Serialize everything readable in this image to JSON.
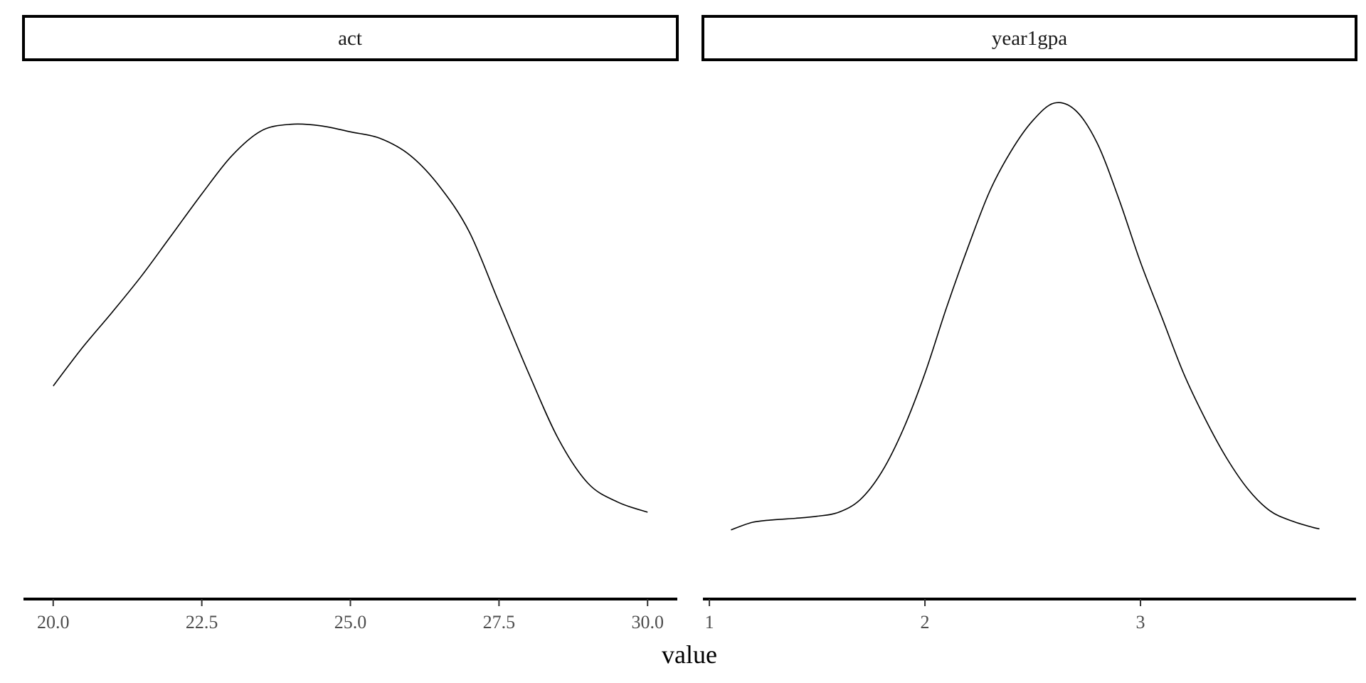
{
  "chart_data": {
    "type": "line",
    "chart_kind": "faceted density plot",
    "xlabel": "value",
    "ylabel": "",
    "y_axis_shown": false,
    "grid": false,
    "legend": "none",
    "line_color": "#000000",
    "panels": [
      {
        "strip_label": "act",
        "xlim": [
          19.5,
          30.5
        ],
        "x_ticks": [
          20.0,
          22.5,
          25.0,
          27.5,
          30.0
        ],
        "x_tick_labels": [
          "20.0",
          "22.5",
          "25.0",
          "27.5",
          "30.0"
        ],
        "series": [
          {
            "x": [
              20.0,
              20.5,
              21.0,
              21.5,
              22.0,
              22.5,
              23.0,
              23.5,
              24.0,
              24.5,
              25.0,
              25.5,
              26.0,
              26.5,
              27.0,
              27.5,
              28.0,
              28.5,
              29.0,
              29.5,
              30.0
            ],
            "y": [
              0.405,
              0.482,
              0.552,
              0.625,
              0.705,
              0.785,
              0.86,
              0.91,
              0.923,
              0.92,
              0.908,
              0.895,
              0.862,
              0.8,
              0.71,
              0.57,
              0.43,
              0.3,
              0.212,
              0.175,
              0.155
            ]
          }
        ]
      },
      {
        "strip_label": "year1gpa",
        "xlim": [
          0.97,
          4.0
        ],
        "x_ticks": [
          1,
          2,
          3
        ],
        "x_tick_labels": [
          "1",
          "2",
          "3"
        ],
        "series": [
          {
            "x": [
              1.1,
              1.2,
              1.3,
              1.4,
              1.5,
              1.6,
              1.7,
              1.8,
              1.9,
              2.0,
              2.1,
              2.2,
              2.3,
              2.4,
              2.5,
              2.6,
              2.7,
              2.8,
              2.9,
              3.0,
              3.1,
              3.2,
              3.3,
              3.4,
              3.5,
              3.6,
              3.7,
              3.8,
              3.83
            ],
            "y": [
              0.12,
              0.135,
              0.14,
              0.143,
              0.147,
              0.155,
              0.18,
              0.235,
              0.32,
              0.43,
              0.56,
              0.68,
              0.79,
              0.87,
              0.93,
              0.965,
              0.95,
              0.885,
              0.775,
              0.65,
              0.54,
              0.43,
              0.34,
              0.262,
              0.2,
              0.158,
              0.138,
              0.125,
              0.122
            ]
          }
        ]
      }
    ]
  }
}
